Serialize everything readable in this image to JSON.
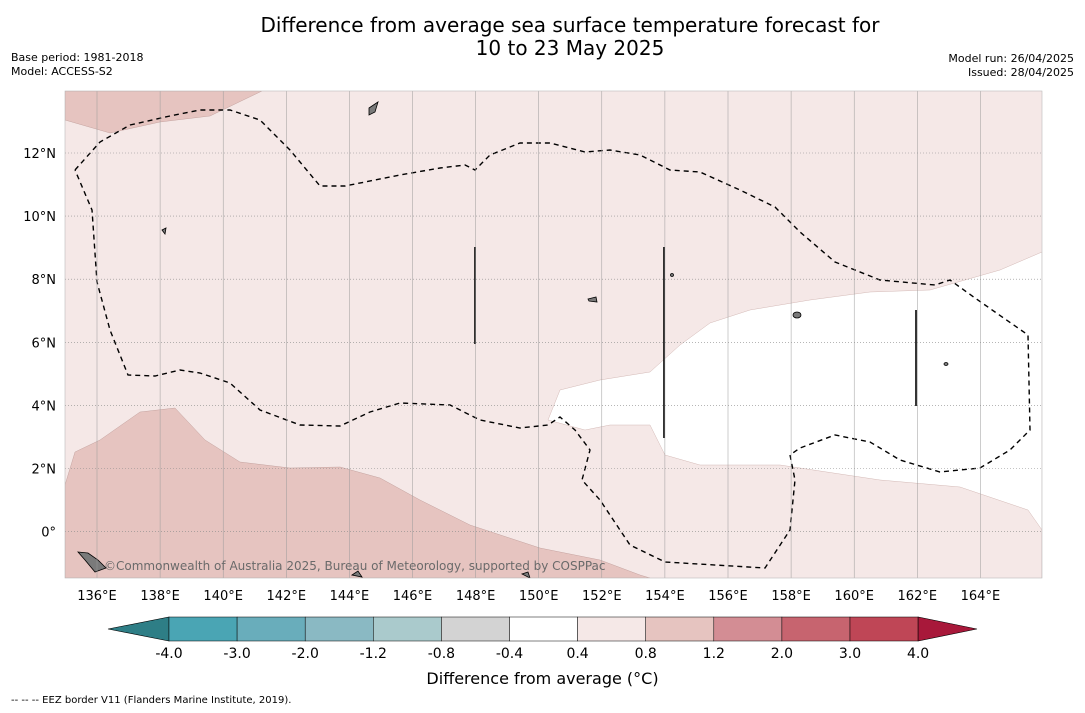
{
  "title_line1": "Difference from average sea surface temperature forecast for",
  "title_line2": "10 to 23 May 2025",
  "meta_left": {
    "base_period": "Base period: 1981-2018",
    "model": "Model: ACCESS-S2"
  },
  "meta_right": {
    "model_run": "Model run: 26/04/2025",
    "issued": "Issued: 28/04/2025"
  },
  "lon_labels": [
    "136°E",
    "138°E",
    "140°E",
    "142°E",
    "144°E",
    "146°E",
    "148°E",
    "150°E",
    "152°E",
    "154°E",
    "156°E",
    "158°E",
    "160°E",
    "162°E",
    "164°E"
  ],
  "lat_labels": [
    "12°N",
    "10°N",
    "8°N",
    "6°N",
    "4°N",
    "2°N",
    "0°"
  ],
  "attribution": "©Commonwealth of Australia 2025, Bureau of Meteorology, supported by COSPPac",
  "colorbar": {
    "title": "Difference from average (°C)",
    "tick_labels": [
      "-4.0",
      "-3.0",
      "-2.0",
      "-1.2",
      "-0.8",
      "-0.4",
      "0.4",
      "0.8",
      "1.2",
      "2.0",
      "3.0",
      "4.0"
    ],
    "colors": [
      "#2e7e86",
      "#4aa5b4",
      "#69adbb",
      "#8ab9c3",
      "#aacacc",
      "#d3d3d3",
      "#ffffff",
      "#f5e8e7",
      "#e6c4c0",
      "#d38d94",
      "#c7646f",
      "#bf4656",
      "#a8183a"
    ]
  },
  "footer": "--  --  -- EEZ border V11 (Flanders Marine Institute, 2019)."
}
